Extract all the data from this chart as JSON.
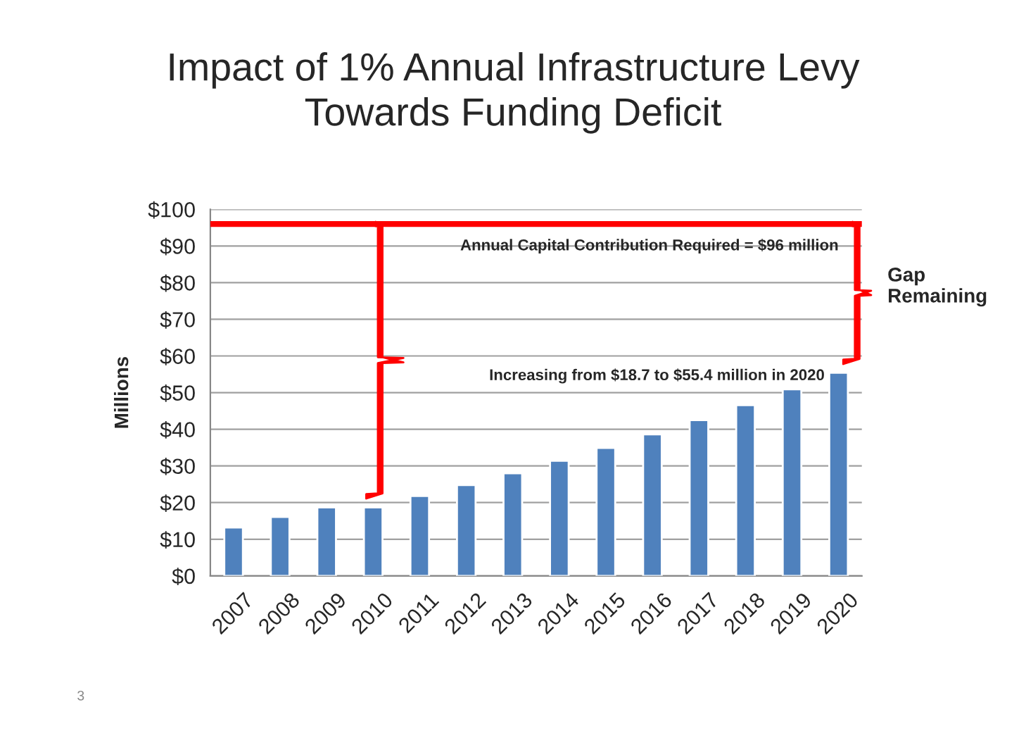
{
  "chart_data": {
    "type": "bar",
    "title": "Impact of 1% Annual Infrastructure Levy\nTowards Funding Deficit",
    "ylabel": "Millions",
    "categories": [
      "2007",
      "2008",
      "2009",
      "2010",
      "2011",
      "2012",
      "2013",
      "2014",
      "2015",
      "2016",
      "2017",
      "2018",
      "2019",
      "2020"
    ],
    "values": [
      13.2,
      16.1,
      18.7,
      18.7,
      21.8,
      24.8,
      28.0,
      31.4,
      34.9,
      38.6,
      42.5,
      46.6,
      50.9,
      55.4
    ],
    "color": "#4f81bd",
    "ylim": [
      0,
      100
    ],
    "yticks": [
      {
        "value": 0,
        "label": "$0"
      },
      {
        "value": 10,
        "label": "$10"
      },
      {
        "value": 20,
        "label": "$20"
      },
      {
        "value": 30,
        "label": "$30"
      },
      {
        "value": 40,
        "label": "$40"
      },
      {
        "value": 50,
        "label": "$50"
      },
      {
        "value": 60,
        "label": "$60"
      },
      {
        "value": 70,
        "label": "$70"
      },
      {
        "value": 80,
        "label": "$80"
      },
      {
        "value": 90,
        "label": "$90"
      },
      {
        "value": 100,
        "label": "$100"
      }
    ],
    "grid": "y",
    "ref_lines": [
      {
        "axis": "y",
        "value": 96,
        "label": "Annual Capital Contribution Required = $96 million",
        "color": "#ff0000"
      }
    ],
    "annotations": [
      "Increasing from $18.7 to $55.4 million in 2020",
      "Gap Remaining",
      "3"
    ]
  }
}
